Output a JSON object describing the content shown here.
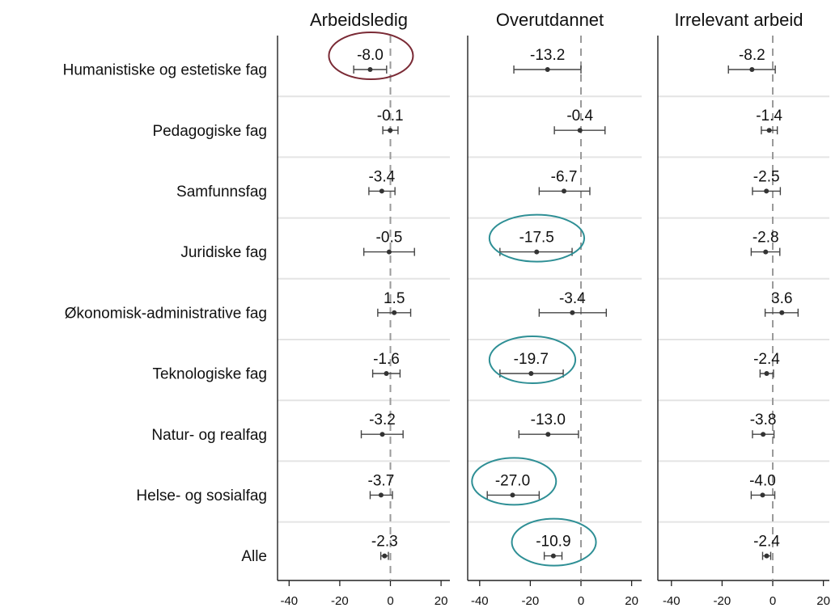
{
  "chart_data": {
    "type": "scatter",
    "title": "",
    "xlabel": "",
    "ylabel": "",
    "xlim": [
      -45,
      25
    ],
    "x_ticks": [
      "-40",
      "-20",
      "0",
      "20"
    ],
    "reference_line": 0,
    "grid": "horizontal",
    "categories": [
      "Humanistiske og estetiske fag",
      "Pedagogiske fag",
      "Samfunnsfag",
      "Juridiske fag",
      "Økonomisk-administrative fag",
      "Teknologiske fag",
      "Natur- og realfag",
      "Helse- og sosialfag",
      "Alle"
    ],
    "highlight_colors": {
      "red": "#7a2a35",
      "teal": "#2e8f95"
    },
    "panels": [
      {
        "title": "Arbeidsledig",
        "points": [
          {
            "value": -8.0,
            "label": "-8.0",
            "ci": [
              -14.5,
              -1.5
            ],
            "highlight": "red"
          },
          {
            "value": -0.1,
            "label": "-0.1",
            "ci": [
              -3.0,
              3.0
            ]
          },
          {
            "value": -3.4,
            "label": "-3.4",
            "ci": [
              -8.5,
              1.8
            ]
          },
          {
            "value": -0.5,
            "label": "-0.5",
            "ci": [
              -10.5,
              9.5
            ]
          },
          {
            "value": 1.5,
            "label": "1.5",
            "ci": [
              -5.0,
              8.0
            ]
          },
          {
            "value": -1.6,
            "label": "-1.6",
            "ci": [
              -7.0,
              3.8
            ]
          },
          {
            "value": -3.2,
            "label": "-3.2",
            "ci": [
              -11.5,
              5.0
            ]
          },
          {
            "value": -3.7,
            "label": "-3.7",
            "ci": [
              -8.0,
              0.8
            ]
          },
          {
            "value": -2.3,
            "label": "-2.3",
            "ci": [
              -3.8,
              -0.8
            ]
          }
        ]
      },
      {
        "title": "Overutdannet",
        "points": [
          {
            "value": -13.2,
            "label": "-13.2",
            "ci": [
              -26.5,
              0.0
            ]
          },
          {
            "value": -0.4,
            "label": "-0.4",
            "ci": [
              -10.5,
              9.5
            ]
          },
          {
            "value": -6.7,
            "label": "-6.7",
            "ci": [
              -16.5,
              3.5
            ]
          },
          {
            "value": -17.5,
            "label": "-17.5",
            "ci": [
              -32.0,
              -3.5
            ],
            "highlight": "teal"
          },
          {
            "value": -3.4,
            "label": "-3.4",
            "ci": [
              -16.5,
              10.0
            ]
          },
          {
            "value": -19.7,
            "label": "-19.7",
            "ci": [
              -32.0,
              -7.0
            ],
            "highlight": "teal"
          },
          {
            "value": -13.0,
            "label": "-13.0",
            "ci": [
              -24.5,
              -1.0
            ]
          },
          {
            "value": -27.0,
            "label": "-27.0",
            "ci": [
              -37.0,
              -16.5
            ],
            "highlight": "teal"
          },
          {
            "value": -10.9,
            "label": "-10.9",
            "ci": [
              -14.5,
              -7.5
            ],
            "highlight": "teal"
          }
        ]
      },
      {
        "title": "Irrelevant arbeid",
        "points": [
          {
            "value": -8.2,
            "label": "-8.2",
            "ci": [
              -17.5,
              1.0
            ]
          },
          {
            "value": -1.4,
            "label": "-1.4",
            "ci": [
              -4.5,
              1.8
            ]
          },
          {
            "value": -2.5,
            "label": "-2.5",
            "ci": [
              -8.0,
              3.0
            ]
          },
          {
            "value": -2.8,
            "label": "-2.8",
            "ci": [
              -8.5,
              2.8
            ]
          },
          {
            "value": 3.6,
            "label": "3.6",
            "ci": [
              -3.0,
              10.0
            ]
          },
          {
            "value": -2.4,
            "label": "-2.4",
            "ci": [
              -5.0,
              0.3
            ]
          },
          {
            "value": -3.8,
            "label": "-3.8",
            "ci": [
              -8.0,
              0.5
            ]
          },
          {
            "value": -4.0,
            "label": "-4.0",
            "ci": [
              -8.5,
              0.8
            ]
          },
          {
            "value": -2.4,
            "label": "-2.4",
            "ci": [
              -4.0,
              -0.8
            ]
          }
        ]
      }
    ]
  }
}
